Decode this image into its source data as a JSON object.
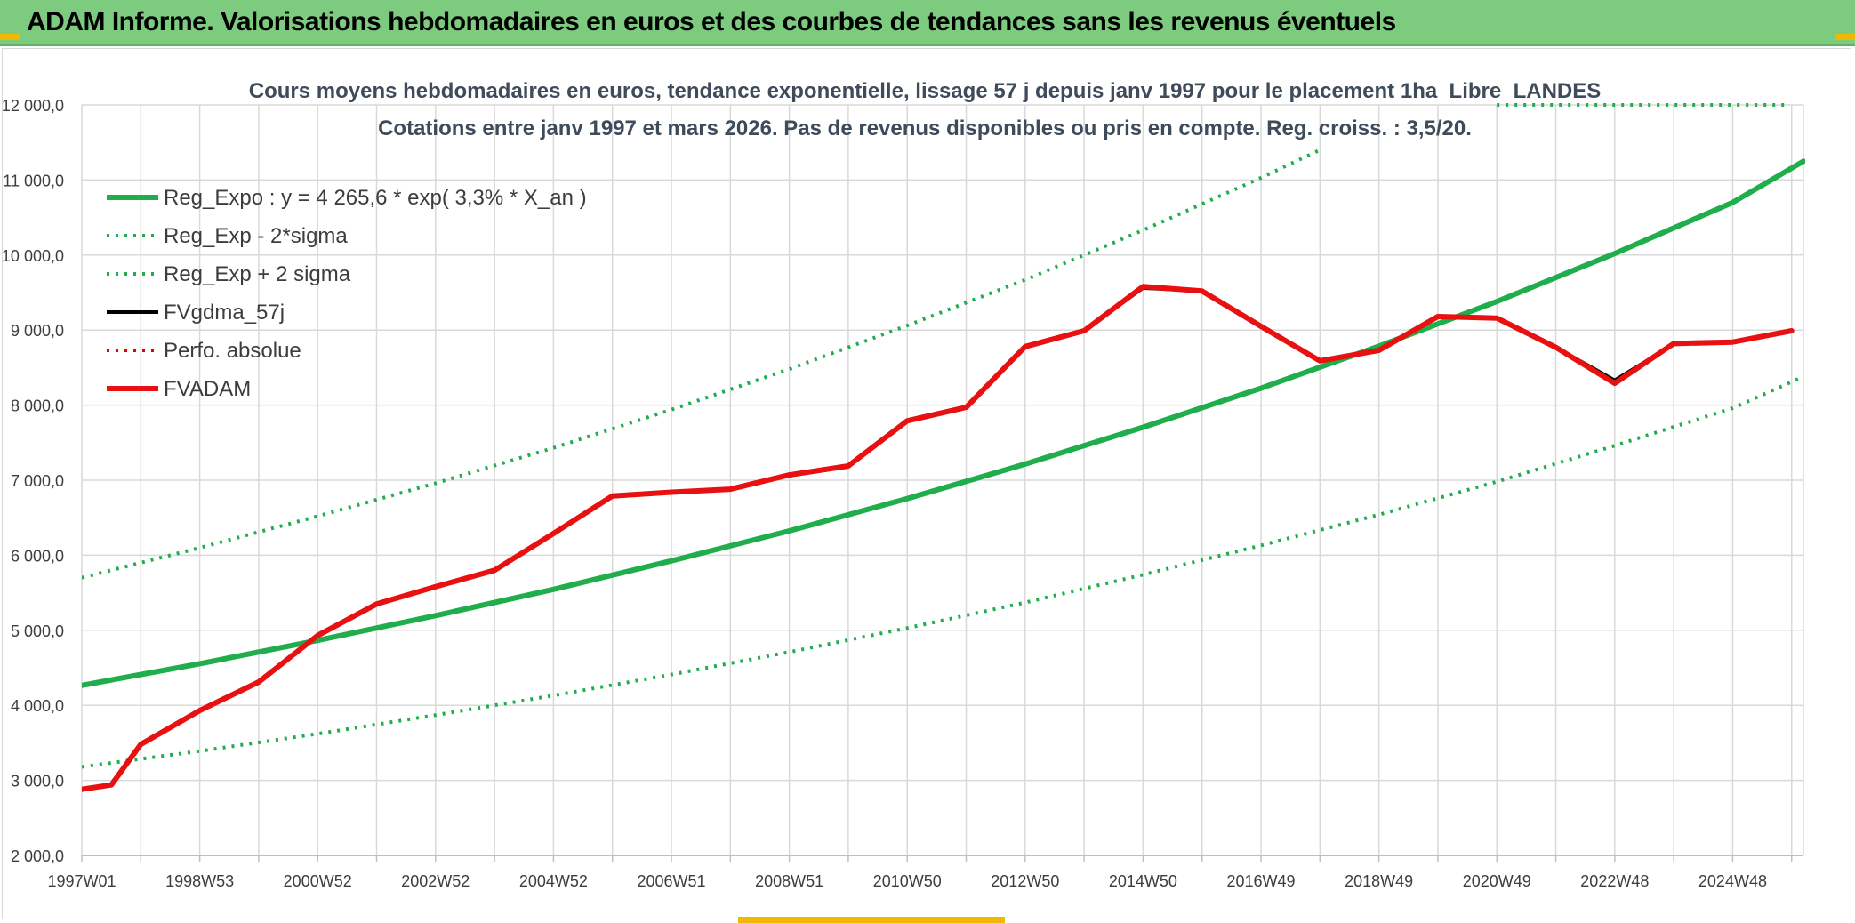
{
  "header": {
    "title": "ADAM Informe. Valorisations hebdomadaires en euros et des courbes de tendances sans les revenus éventuels"
  },
  "colors": {
    "header_bg": "#7ccb7e",
    "regression": "#1fae4b",
    "sigma_bands": "#1fae4b",
    "fvgdma": "#000000",
    "perfo": "#e00000",
    "fvadam": "#e81010",
    "grid": "#d9d9d9",
    "accent": "#f0b800"
  },
  "chart_data": {
    "type": "line",
    "title_line1": "Cours moyens hebdomadaires en euros, tendance exponentielle, lissage 57 j depuis janv 1997 pour le placement 1ha_Libre_LANDES",
    "title_line2": "Cotations entre janv 1997 et mars 2026. Pas de revenus disponibles ou pris en compte. Reg. croiss. : 3,5/20.",
    "xlabel": "",
    "ylabel": "",
    "x_tick_labels": [
      "1997W01",
      "1998W53",
      "2000W52",
      "2002W52",
      "2004W52",
      "2006W51",
      "2008W51",
      "2010W50",
      "2012W50",
      "2014W50",
      "2016W49",
      "2018W49",
      "2020W49",
      "2022W48",
      "2024W48"
    ],
    "x_tick_years": [
      1997.0,
      1999.0,
      2001.0,
      2003.0,
      2005.0,
      2007.0,
      2009.0,
      2011.0,
      2013.0,
      2015.0,
      2017.0,
      2019.0,
      2021.0,
      2023.0,
      2025.0
    ],
    "xlim": [
      1997.0,
      2026.2
    ],
    "ylim": [
      2000,
      12000
    ],
    "y_ticks": [
      2000,
      3000,
      4000,
      5000,
      6000,
      7000,
      8000,
      9000,
      10000,
      11000,
      12000
    ],
    "y_tick_labels": [
      "2 000,0",
      "3 000,0",
      "4 000,0",
      "5 000,0",
      "6 000,0",
      "7 000,0",
      "8 000,0",
      "9 000,0",
      "10 000,0",
      "11 000,0",
      "12 000,0"
    ],
    "grid": true,
    "legend_position": "top-left",
    "series": [
      {
        "name": "Reg_Expo : y = 4 265,6 * exp( 3,3% *  X_an )",
        "style": "solid-thick",
        "color": "#1fae4b",
        "x": [
          1997.0,
          1999.0,
          2001.0,
          2003.0,
          2005.0,
          2007.0,
          2009.0,
          2011.0,
          2013.0,
          2015.0,
          2017.0,
          2019.0,
          2021.0,
          2023.0,
          2025.0,
          2026.2
        ],
        "y": [
          4265,
          4555,
          4865,
          5195,
          5545,
          5925,
          6325,
          6755,
          7215,
          7705,
          8225,
          8785,
          9380,
          10020,
          10700,
          11250
        ]
      },
      {
        "name": "Reg_Exp - 2*sigma",
        "style": "dotted",
        "color": "#1fae4b",
        "x": [
          1997.0,
          1999.0,
          2001.0,
          2003.0,
          2005.0,
          2007.0,
          2009.0,
          2011.0,
          2013.0,
          2015.0,
          2017.0,
          2019.0,
          2021.0,
          2023.0,
          2025.0,
          2026.2
        ],
        "y": [
          3180,
          3390,
          3620,
          3870,
          4130,
          4410,
          4710,
          5030,
          5370,
          5740,
          6130,
          6540,
          6980,
          7460,
          7960,
          8380
        ]
      },
      {
        "name": "Reg_Exp + 2 sigma",
        "style": "dotted",
        "color": "#1fae4b",
        "x": [
          1997.0,
          1999.0,
          2001.0,
          2003.0,
          2005.0,
          2007.0,
          2009.0,
          2011.0,
          2013.0,
          2015.0,
          2017.0,
          2018.0
        ],
        "y": [
          5700,
          6100,
          6520,
          6960,
          7430,
          7940,
          8480,
          9060,
          9670,
          10330,
          11030,
          11400
        ],
        "legend_marker_x": [
          2021.0,
          2025.9
        ],
        "legend_marker_y": [
          12000,
          12000
        ]
      },
      {
        "name": "FVgdma_57j",
        "style": "solid",
        "color": "#000000",
        "x": [
          1997.0,
          1997.5,
          1998.0,
          1999.0,
          2000.0,
          2001.0,
          2002.0,
          2003.0,
          2004.0,
          2005.0,
          2006.0,
          2007.0,
          2008.0,
          2009.0,
          2010.0,
          2011.0,
          2012.0,
          2013.0,
          2014.0,
          2015.0,
          2016.0,
          2017.0,
          2018.0,
          2019.0,
          2020.0,
          2021.0,
          2022.0,
          2023.0,
          2024.0,
          2025.0,
          2026.0
        ],
        "y": [
          2880,
          2940,
          3480,
          3930,
          4320,
          4930,
          5350,
          5580,
          5800,
          6280,
          6780,
          6840,
          6880,
          7060,
          7180,
          7800,
          7980,
          8790,
          9000,
          9560,
          9520,
          9050,
          8600,
          8730,
          9170,
          9160,
          8770,
          8330,
          8810,
          8840,
          8990
        ]
      },
      {
        "name": "Perfo. absolue",
        "style": "dotted",
        "color": "#e00000",
        "x": [],
        "y": []
      },
      {
        "name": "FVADAM",
        "style": "solid-thick",
        "color": "#e81010",
        "x": [
          1997.0,
          1997.5,
          1998.0,
          1999.0,
          2000.0,
          2001.0,
          2002.0,
          2003.0,
          2004.0,
          2005.0,
          2006.0,
          2007.0,
          2008.0,
          2009.0,
          2010.0,
          2011.0,
          2012.0,
          2013.0,
          2014.0,
          2015.0,
          2016.0,
          2017.0,
          2018.0,
          2019.0,
          2020.0,
          2021.0,
          2022.0,
          2023.0,
          2024.0,
          2025.0,
          2026.0
        ],
        "y": [
          2880,
          2940,
          3480,
          3930,
          4310,
          4930,
          5350,
          5580,
          5800,
          6290,
          6790,
          6840,
          6880,
          7070,
          7190,
          7790,
          7970,
          8780,
          8990,
          9580,
          9520,
          9050,
          8590,
          8730,
          9180,
          9160,
          8770,
          8290,
          8820,
          8840,
          8990
        ]
      }
    ]
  }
}
